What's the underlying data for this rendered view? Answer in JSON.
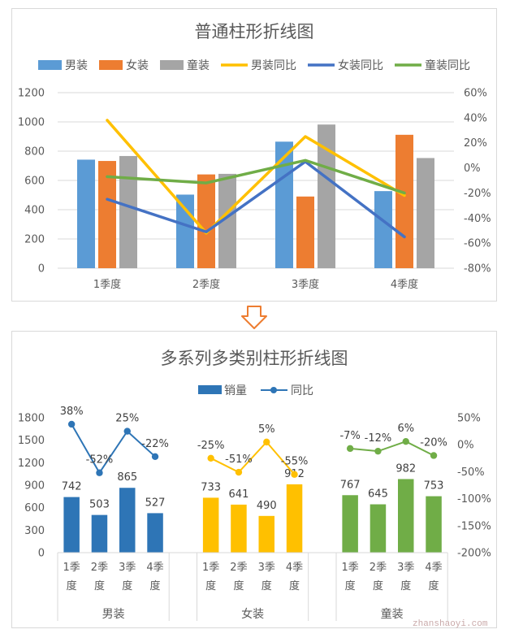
{
  "chart_data": [
    {
      "type": "bar",
      "title": "普通柱形折线图",
      "categories": [
        "1季度",
        "2季度",
        "3季度",
        "4季度"
      ],
      "series": [
        {
          "name": "男装",
          "type": "bar",
          "values": [
            742,
            503,
            865,
            527
          ],
          "color": "#5b9bd5"
        },
        {
          "name": "女装",
          "type": "bar",
          "values": [
            733,
            641,
            490,
            912
          ],
          "color": "#ed7d31"
        },
        {
          "name": "童装",
          "type": "bar",
          "values": [
            767,
            645,
            982,
            753
          ],
          "color": "#a5a5a5"
        },
        {
          "name": "男装同比",
          "type": "line",
          "axis": "secondary",
          "values": [
            38,
            -52,
            25,
            -22
          ],
          "color": "#ffc000"
        },
        {
          "name": "女装同比",
          "type": "line",
          "axis": "secondary",
          "values": [
            -25,
            -51,
            5,
            -55
          ],
          "color": "#4472c4"
        },
        {
          "name": "童装同比",
          "type": "line",
          "axis": "secondary",
          "values": [
            -7,
            -12,
            6,
            -20
          ],
          "color": "#70ad47"
        }
      ],
      "ylim": [
        0,
        1200
      ],
      "yticks": [
        "0",
        "200",
        "400",
        "600",
        "800",
        "1000",
        "1200"
      ],
      "y2lim": [
        -80,
        60
      ],
      "y2ticks": [
        "-80%",
        "-60%",
        "-40%",
        "-20%",
        "0%",
        "20%",
        "40%",
        "60%"
      ],
      "grid": true,
      "legend": "top"
    },
    {
      "type": "bar",
      "title": "多系列多类别柱形折线图",
      "groups": [
        {
          "name": "男装",
          "color": "#2e75b6",
          "categories": [
            "1季度",
            "2季度",
            "3季度",
            "4季度"
          ],
          "sales": [
            742,
            503,
            865,
            527
          ],
          "yoy": [
            38,
            -52,
            25,
            -22
          ]
        },
        {
          "name": "女装",
          "color": "#ffc000",
          "categories": [
            "1季度",
            "2季度",
            "3季度",
            "4季度"
          ],
          "sales": [
            733,
            641,
            490,
            912
          ],
          "yoy": [
            -25,
            -51,
            5,
            -55
          ]
        },
        {
          "name": "童装",
          "color": "#70ad47",
          "categories": [
            "1季度",
            "2季度",
            "3季度",
            "4季度"
          ],
          "sales": [
            767,
            645,
            982,
            753
          ],
          "yoy": [
            -7,
            -12,
            6,
            -20
          ]
        }
      ],
      "legend_entries": [
        {
          "name": "销量",
          "kind": "bar",
          "color": "#2e75b6"
        },
        {
          "name": "同比",
          "kind": "line",
          "color": "#2e75b6"
        }
      ],
      "ylim": [
        0,
        1800
      ],
      "yticks": [
        "0",
        "300",
        "600",
        "900",
        "1200",
        "1500",
        "1800"
      ],
      "y2lim": [
        -200,
        50
      ],
      "y2ticks": [
        "-200%",
        "-150%",
        "-100%",
        "-50%",
        "0%",
        "50%"
      ],
      "grid": false,
      "legend": "top"
    }
  ],
  "watermark": "zhanshaoyi.com",
  "colors": {
    "arrow": "#ed7d31",
    "axis_text": "#595959",
    "gridline": "#d9d9d9"
  }
}
